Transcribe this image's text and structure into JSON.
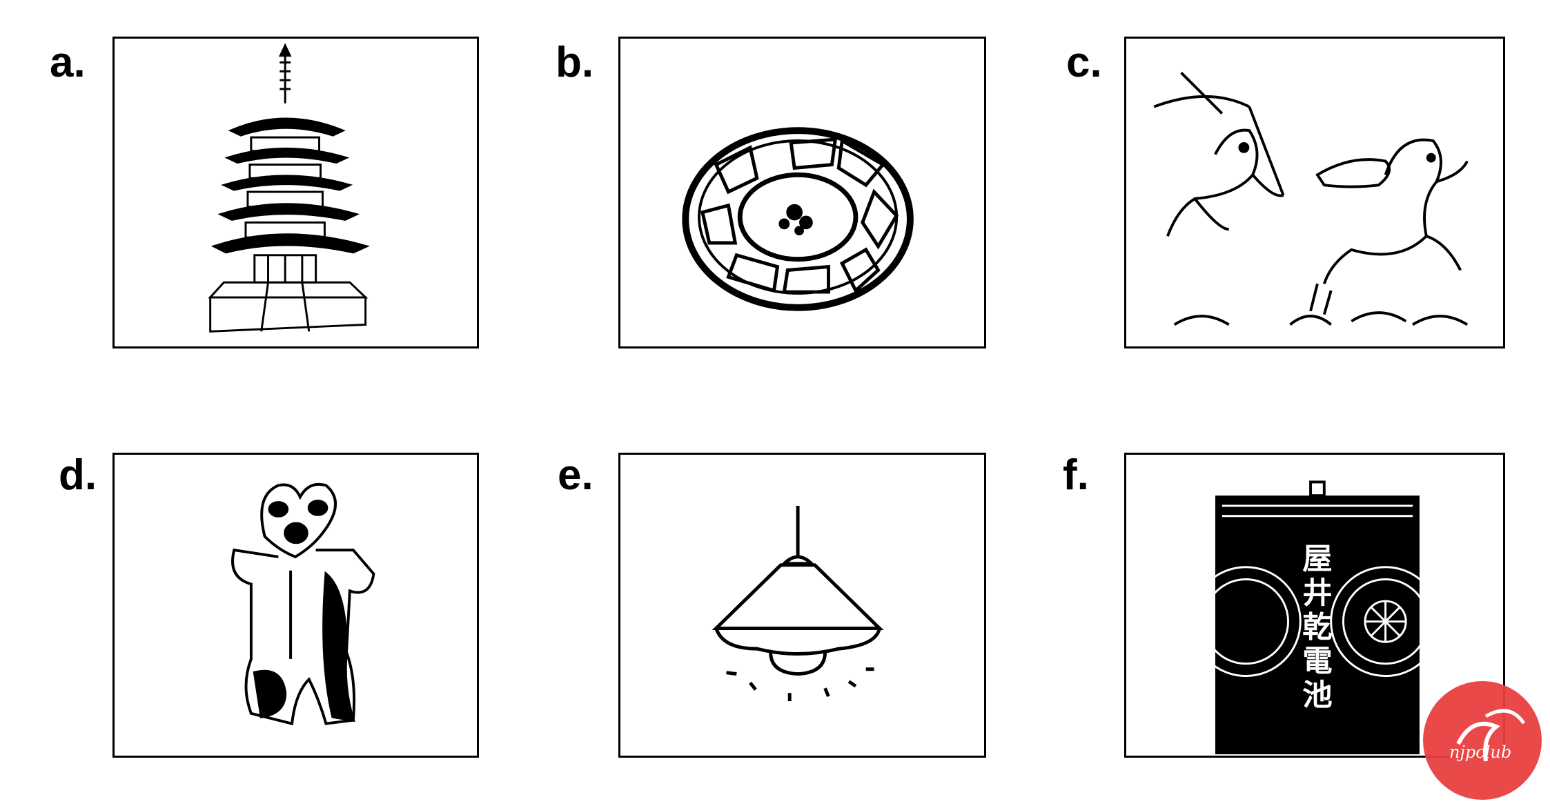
{
  "panels": [
    {
      "letter": "a.",
      "icon": "pagoda-icon"
    },
    {
      "letter": "b.",
      "icon": "plate-icon"
    },
    {
      "letter": "c.",
      "icon": "animal-scroll-icon"
    },
    {
      "letter": "d.",
      "icon": "dogu-figurine-icon"
    },
    {
      "letter": "e.",
      "icon": "pendant-lamp-icon"
    },
    {
      "letter": "f.",
      "icon": "dry-battery-icon"
    }
  ],
  "labelsInPicture": {
    "battery": "屋井乾電池"
  },
  "watermark": {
    "text": "njpclub",
    "color": "#e8403f"
  }
}
